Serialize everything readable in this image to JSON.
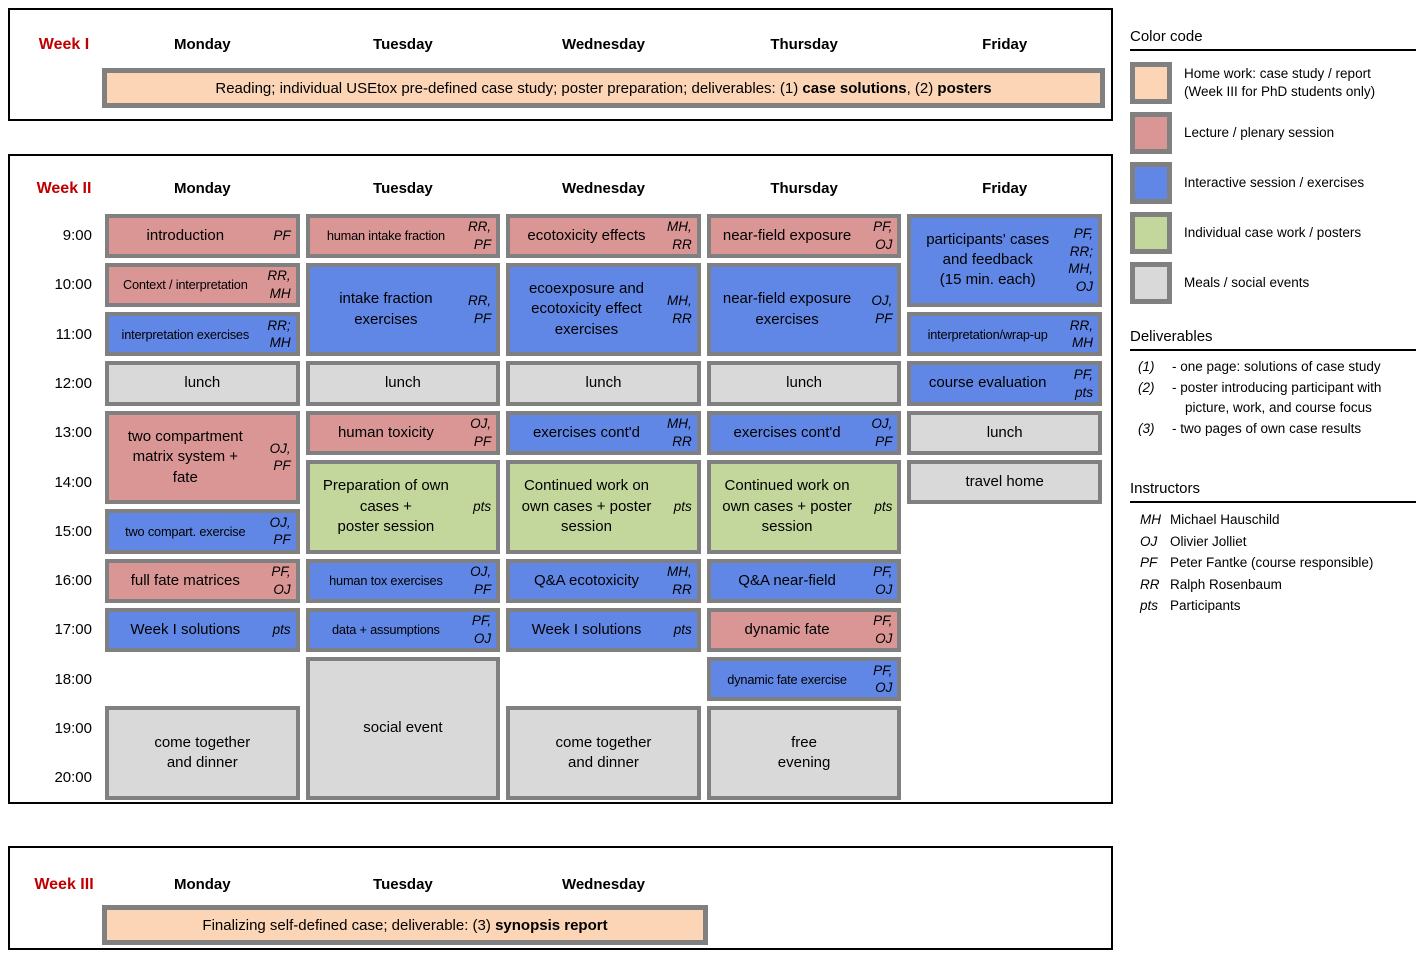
{
  "colors": {
    "homework": "#FBD5B5",
    "lecture": "#D99694",
    "interactive": "#6187E6",
    "individual": "#C3D69B",
    "meal": "#D9D9D9",
    "cell_border": "#808080",
    "week_label": "#C00000"
  },
  "week1": {
    "label": "Week I",
    "days": [
      "Monday",
      "Tuesday",
      "Wednesday",
      "Thursday",
      "Friday"
    ],
    "banner": [
      {
        "text": "Reading; individual USEtox pre-defined case study; poster preparation; deliverables: (1) ",
        "bold": false
      },
      {
        "text": "case solutions",
        "bold": true
      },
      {
        "text": ", (2) ",
        "bold": false
      },
      {
        "text": "posters",
        "bold": true
      }
    ]
  },
  "week2": {
    "label": "Week II",
    "days": [
      "Monday",
      "Tuesday",
      "Wednesday",
      "Thursday",
      "Friday"
    ],
    "times": [
      "9:00",
      "10:00",
      "11:00",
      "12:00",
      "13:00",
      "14:00",
      "15:00",
      "16:00",
      "17:00",
      "18:00",
      "19:00",
      "20:00"
    ],
    "cells": [
      {
        "day": 0,
        "row": 1,
        "span": 1,
        "type": "lecture",
        "label": "introduction",
        "initials": "PF",
        "small": false
      },
      {
        "day": 0,
        "row": 2,
        "span": 1,
        "type": "lecture",
        "label": "Context / interpretation",
        "initials": "RR,\nMH",
        "small": true
      },
      {
        "day": 0,
        "row": 3,
        "span": 1,
        "type": "interactive",
        "label": "interpretation exercises",
        "initials": "RR;\nMH",
        "small": true
      },
      {
        "day": 0,
        "row": 4,
        "span": 1,
        "type": "meal",
        "label": "lunch",
        "initials": "",
        "small": false
      },
      {
        "day": 0,
        "row": 5,
        "span": 2,
        "type": "lecture",
        "label": "two compartment\nmatrix system +\nfate",
        "initials": "OJ,\nPF",
        "small": false
      },
      {
        "day": 0,
        "row": 7,
        "span": 1,
        "type": "interactive",
        "label": "two compart. exercise",
        "initials": "OJ,PF",
        "small": true
      },
      {
        "day": 0,
        "row": 8,
        "span": 1,
        "type": "lecture",
        "label": "full fate matrices",
        "initials": "PF,\nOJ",
        "small": false
      },
      {
        "day": 0,
        "row": 9,
        "span": 1,
        "type": "interactive",
        "label": "Week I solutions",
        "initials": "pts",
        "small": false
      },
      {
        "day": 0,
        "row": 11,
        "span": 2,
        "type": "meal",
        "label": "come together\nand dinner",
        "initials": "",
        "small": false
      },
      {
        "day": 1,
        "row": 1,
        "span": 1,
        "type": "lecture",
        "label": "human intake fraction",
        "initials": "RR,\nPF",
        "small": true
      },
      {
        "day": 1,
        "row": 2,
        "span": 2,
        "type": "interactive",
        "label": "intake fraction\nexercises",
        "initials": "RR,\nPF",
        "small": false
      },
      {
        "day": 1,
        "row": 4,
        "span": 1,
        "type": "meal",
        "label": "lunch",
        "initials": "",
        "small": false
      },
      {
        "day": 1,
        "row": 5,
        "span": 1,
        "type": "lecture",
        "label": "human toxicity",
        "initials": "OJ,\nPF",
        "small": false
      },
      {
        "day": 1,
        "row": 6,
        "span": 2,
        "type": "individual",
        "label": "Preparation of own\ncases +\nposter session",
        "initials": "pts",
        "small": false
      },
      {
        "day": 1,
        "row": 8,
        "span": 1,
        "type": "interactive",
        "label": "human tox exercises",
        "initials": "OJ,PF",
        "small": true
      },
      {
        "day": 1,
        "row": 9,
        "span": 1,
        "type": "interactive",
        "label": "data + assumptions",
        "initials": "PF,\nOJ",
        "small": true
      },
      {
        "day": 1,
        "row": 10,
        "span": 3,
        "type": "meal",
        "label": "social event",
        "initials": "",
        "small": false
      },
      {
        "day": 2,
        "row": 1,
        "span": 1,
        "type": "lecture",
        "label": "ecotoxicity effects",
        "initials": "MH,\nRR",
        "small": false
      },
      {
        "day": 2,
        "row": 2,
        "span": 2,
        "type": "interactive",
        "label": "ecoexposure and\necotoxicity effect\nexercises",
        "initials": "MH,\nRR",
        "small": false
      },
      {
        "day": 2,
        "row": 4,
        "span": 1,
        "type": "meal",
        "label": "lunch",
        "initials": "",
        "small": false
      },
      {
        "day": 2,
        "row": 5,
        "span": 1,
        "type": "interactive",
        "label": "exercises cont'd",
        "initials": "MH,\nRR",
        "small": false
      },
      {
        "day": 2,
        "row": 6,
        "span": 2,
        "type": "individual",
        "label": "Continued work on\nown cases + poster\nsession",
        "initials": "pts",
        "small": false
      },
      {
        "day": 2,
        "row": 8,
        "span": 1,
        "type": "interactive",
        "label": "Q&A ecotoxicity",
        "initials": "MH,\nRR",
        "small": false
      },
      {
        "day": 2,
        "row": 9,
        "span": 1,
        "type": "interactive",
        "label": "Week I solutions",
        "initials": "pts",
        "small": false
      },
      {
        "day": 2,
        "row": 11,
        "span": 2,
        "type": "meal",
        "label": "come together\nand dinner",
        "initials": "",
        "small": false
      },
      {
        "day": 3,
        "row": 1,
        "span": 1,
        "type": "lecture",
        "label": "near-field exposure",
        "initials": "PF,\nOJ",
        "small": false
      },
      {
        "day": 3,
        "row": 2,
        "span": 2,
        "type": "interactive",
        "label": "near-field exposure\nexercises",
        "initials": "OJ,\nPF",
        "small": false
      },
      {
        "day": 3,
        "row": 4,
        "span": 1,
        "type": "meal",
        "label": "lunch",
        "initials": "",
        "small": false
      },
      {
        "day": 3,
        "row": 5,
        "span": 1,
        "type": "interactive",
        "label": "exercises cont'd",
        "initials": "OJ,\nPF",
        "small": false
      },
      {
        "day": 3,
        "row": 6,
        "span": 2,
        "type": "individual",
        "label": "Continued work on\nown cases + poster\nsession",
        "initials": "pts",
        "small": false
      },
      {
        "day": 3,
        "row": 8,
        "span": 1,
        "type": "interactive",
        "label": "Q&A near-field",
        "initials": "PF,\nOJ",
        "small": false
      },
      {
        "day": 3,
        "row": 9,
        "span": 1,
        "type": "lecture",
        "label": "dynamic fate",
        "initials": "PF,\nOJ",
        "small": false
      },
      {
        "day": 3,
        "row": 10,
        "span": 1,
        "type": "interactive",
        "label": "dynamic fate exercise",
        "initials": "PF,\nOJ",
        "small": true
      },
      {
        "day": 3,
        "row": 11,
        "span": 2,
        "type": "meal",
        "label": "free\nevening",
        "initials": "",
        "small": false
      },
      {
        "day": 4,
        "row": 1,
        "span": 2,
        "type": "interactive",
        "label": "participants' cases\nand feedback\n(15 min. each)",
        "initials": "PF,\nRR;\nMH,\nOJ",
        "small": false
      },
      {
        "day": 4,
        "row": 3,
        "span": 1,
        "type": "interactive",
        "label": "interpretation/wrap-up",
        "initials": "RR,\nMH",
        "small": true
      },
      {
        "day": 4,
        "row": 4,
        "span": 1,
        "type": "interactive",
        "label": "course evaluation",
        "initials": "PF,\npts",
        "small": false
      },
      {
        "day": 4,
        "row": 5,
        "span": 1,
        "type": "meal",
        "label": "lunch",
        "initials": "",
        "small": false
      },
      {
        "day": 4,
        "row": 6,
        "span": 1,
        "type": "meal",
        "label": "travel home",
        "initials": "",
        "small": false
      }
    ]
  },
  "week3": {
    "label": "Week III",
    "days": [
      "Monday",
      "Tuesday",
      "Wednesday"
    ],
    "banner": [
      {
        "text": "Finalizing self-defined case; deliverable: (3) ",
        "bold": false
      },
      {
        "text": "synopsis report",
        "bold": true
      }
    ]
  },
  "legend": {
    "title": "Color code",
    "items": [
      {
        "type": "homework",
        "label": "Home work: case study / report\n(Week III for PhD students only)"
      },
      {
        "type": "lecture",
        "label": "Lecture / plenary session"
      },
      {
        "type": "interactive",
        "label": "Interactive session / exercises"
      },
      {
        "type": "individual",
        "label": "Individual case work / posters"
      },
      {
        "type": "meal",
        "label": "Meals / social events"
      }
    ]
  },
  "deliverables": {
    "title": "Deliverables",
    "items": [
      {
        "num": "(1)",
        "text": "- one page: solutions of case study"
      },
      {
        "num": "(2)",
        "text": "- poster introducing participant with picture, work, and course focus"
      },
      {
        "num": "(3)",
        "text": "- two pages of own case results"
      }
    ]
  },
  "instructors": {
    "title": "Instructors",
    "items": [
      {
        "code": "MH",
        "name": "Michael Hauschild"
      },
      {
        "code": "OJ",
        "name": "Olivier Jolliet"
      },
      {
        "code": "PF",
        "name": "Peter Fantke (course responsible)"
      },
      {
        "code": "RR",
        "name": "Ralph Rosenbaum"
      },
      {
        "code": "pts",
        "name": "Participants"
      }
    ]
  }
}
